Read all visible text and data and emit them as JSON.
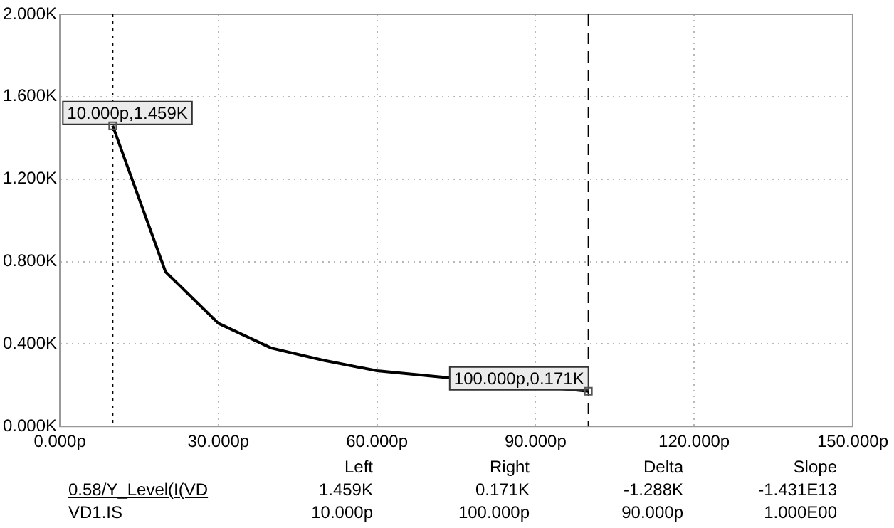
{
  "chart_data": {
    "type": "line",
    "x": [
      10,
      20,
      30,
      40,
      50,
      60,
      70,
      80,
      90,
      100
    ],
    "series": [
      {
        "color": "#000000",
        "values": [
          1.459,
          0.75,
          0.5,
          0.38,
          0.32,
          0.27,
          0.245,
          null,
          null,
          0.171
        ]
      }
    ],
    "xlim": [
      0,
      150
    ],
    "xticks": [
      {
        "value": 0,
        "label": "0.000p"
      },
      {
        "value": 30,
        "label": "30.000p"
      },
      {
        "value": 60,
        "label": "60.000p"
      },
      {
        "value": 90,
        "label": "90.000p"
      },
      {
        "value": 120,
        "label": "120.000p"
      },
      {
        "value": 150,
        "label": "150.000p"
      }
    ],
    "ylim": [
      0,
      2
    ],
    "yticks": [
      {
        "value": 0,
        "label": "0.000K"
      },
      {
        "value": 0.4,
        "label": "0.400K"
      },
      {
        "value": 0.8,
        "label": "0.800K"
      },
      {
        "value": 1.2,
        "label": "1.200K"
      },
      {
        "value": 1.6,
        "label": "1.600K"
      },
      {
        "value": 2,
        "label": "2.000K"
      }
    ],
    "grid": true,
    "marker": "none",
    "line_style": "solid",
    "legend": false,
    "ref_lines": [
      {
        "axis": "x",
        "value": 10,
        "color": "#000000",
        "line_style": "dotted"
      },
      {
        "axis": "x",
        "value": 100,
        "color": "#000000",
        "line_style": "dashed"
      }
    ],
    "annotations": [
      {
        "text": "10.000p,1.459K",
        "x": 10,
        "y": 1.459
      },
      {
        "text": "100.000p,0.171K",
        "x": 100,
        "y": 0.171
      },
      "Left",
      "Right",
      "Delta",
      "Slope",
      "0.58/Y_Level(I(VD",
      "1.459K",
      "0.171K",
      "-1.288K",
      "-1.431E13",
      "VD1.IS",
      "10.000p",
      "100.000p",
      "90.000p",
      "1.000E00"
    ]
  }
}
